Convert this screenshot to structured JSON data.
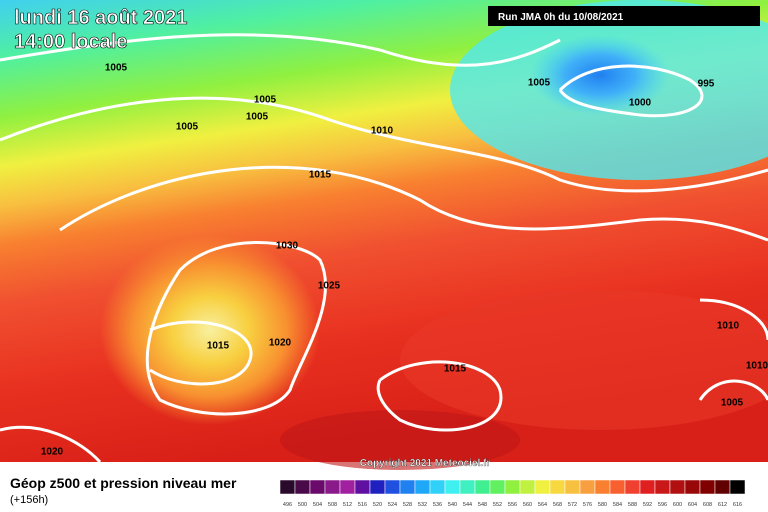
{
  "header": {
    "date": "lundi 16 août 2021",
    "time": "14:00 locale",
    "run": "Run JMA 0h du 10/08/2021"
  },
  "isobar_labels": [
    "1005",
    "1005",
    "1005",
    "1005",
    "1010",
    "1015",
    "1005",
    "995",
    "1000",
    "1030",
    "1025",
    "1015",
    "1020",
    "1015",
    "1010",
    "1010",
    "1005",
    "1020"
  ],
  "copyright": "Copyright 2021 Meteociel.fr",
  "footer": {
    "title": "Géop z500 et pression niveau mer",
    "lead": "(+156h)"
  },
  "legend": {
    "labels": [
      "496",
      "500",
      "504",
      "508",
      "512",
      "516",
      "520",
      "524",
      "528",
      "532",
      "536",
      "540",
      "544",
      "548",
      "552",
      "556",
      "560",
      "564",
      "568",
      "572",
      "576",
      "580",
      "584",
      "588",
      "592",
      "596",
      "600",
      "604",
      "608",
      "612",
      "616"
    ],
    "colors": [
      "#2a0a2a",
      "#4a0a4a",
      "#6a0a6a",
      "#8a1a8a",
      "#a020a0",
      "#6010a0",
      "#2020c0",
      "#2050e0",
      "#2080f0",
      "#20a8f8",
      "#30d0f8",
      "#40f0f0",
      "#40f0c0",
      "#40f090",
      "#60f060",
      "#90f040",
      "#c0f040",
      "#f0f040",
      "#f8d840",
      "#f8c040",
      "#f8a040",
      "#f88030",
      "#f86030",
      "#f04030",
      "#e02020",
      "#c81818",
      "#b01010",
      "#980808",
      "#800000",
      "#600000",
      "#000000"
    ]
  }
}
